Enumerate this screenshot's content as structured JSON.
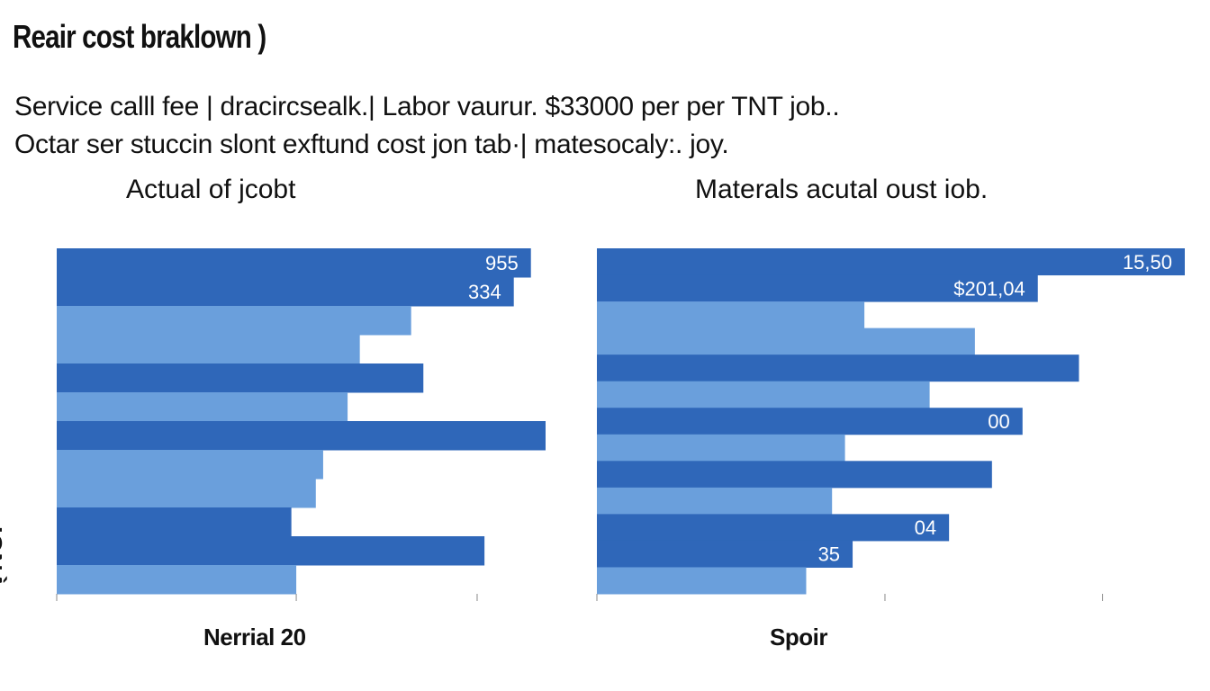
{
  "title": "Reair cost braklown )",
  "description": {
    "line1": "Service calll fee | dracircsealk.| Labor vaurur. $33000 per per TNT job..",
    "line2": "Octar ser stuccin slont exftund cost jon tab·| matesocaly:. joy."
  },
  "y_axis_label": "IONÀ",
  "colors": {
    "dark_bar": "#2f67b9",
    "light_bar": "#6a9fdc",
    "label_text": "#ffffff",
    "tick": "#888888"
  },
  "chart_data": [
    {
      "type": "bar",
      "orientation": "horizontal",
      "title": "Actual of jcobt",
      "xlabel": "Nerrial 20",
      "xlim": [
        0,
        1000
      ],
      "bars": [
        {
          "value": 970,
          "shade": "dark",
          "label": "955"
        },
        {
          "value": 935,
          "shade": "dark",
          "label": "334"
        },
        {
          "value": 725,
          "shade": "light",
          "label": ""
        },
        {
          "value": 620,
          "shade": "light",
          "label": ""
        },
        {
          "value": 750,
          "shade": "dark",
          "label": ""
        },
        {
          "value": 595,
          "shade": "light",
          "label": ""
        },
        {
          "value": 1000,
          "shade": "dark",
          "label": ""
        },
        {
          "value": 545,
          "shade": "light",
          "label": ""
        },
        {
          "value": 530,
          "shade": "light",
          "label": ""
        },
        {
          "value": 480,
          "shade": "dark",
          "label": ""
        },
        {
          "value": 875,
          "shade": "dark",
          "label": ""
        },
        {
          "value": 490,
          "shade": "light",
          "label": ""
        }
      ]
    },
    {
      "type": "bar",
      "orientation": "horizontal",
      "title": "Materals acutal oust iob.",
      "xlabel": "Spoir",
      "xlim": [
        0,
        1000
      ],
      "bars": [
        {
          "value": 1000,
          "shade": "dark",
          "label": "15,50"
        },
        {
          "value": 750,
          "shade": "dark",
          "label": "$201,04"
        },
        {
          "value": 455,
          "shade": "light",
          "label": ""
        },
        {
          "value": 643,
          "shade": "light",
          "label": ""
        },
        {
          "value": 820,
          "shade": "dark",
          "label": ""
        },
        {
          "value": 566,
          "shade": "light",
          "label": ""
        },
        {
          "value": 724,
          "shade": "dark",
          "label": "00"
        },
        {
          "value": 422,
          "shade": "light",
          "label": ""
        },
        {
          "value": 672,
          "shade": "dark",
          "label": ""
        },
        {
          "value": 400,
          "shade": "light",
          "label": ""
        },
        {
          "value": 599,
          "shade": "dark",
          "label": "04"
        },
        {
          "value": 435,
          "shade": "dark",
          "label": "35"
        },
        {
          "value": 356,
          "shade": "light",
          "label": ""
        }
      ]
    }
  ]
}
